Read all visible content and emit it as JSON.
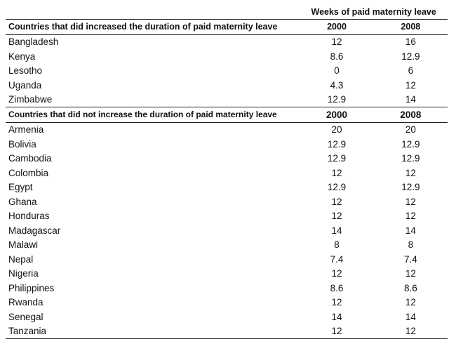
{
  "header": {
    "column_group_label": "Weeks of paid maternity leave"
  },
  "sections": [
    {
      "title": "Countries that did increased the duration of paid maternity leave",
      "col_2000": "2000",
      "col_2008": "2008",
      "rows": [
        {
          "country": "Bangladesh",
          "y2000": "12",
          "y2008": "16"
        },
        {
          "country": "Kenya",
          "y2000": "8.6",
          "y2008": "12.9"
        },
        {
          "country": "Lesotho",
          "y2000": "0",
          "y2008": "6"
        },
        {
          "country": "Uganda",
          "y2000": "4.3",
          "y2008": "12"
        },
        {
          "country": "Zimbabwe",
          "y2000": "12.9",
          "y2008": "14"
        }
      ]
    },
    {
      "title": "Countries that did not increase the duration of paid maternity leave",
      "col_2000": "2000",
      "col_2008": "2008",
      "rows": [
        {
          "country": "Armenia",
          "y2000": "20",
          "y2008": "20"
        },
        {
          "country": "Bolivia",
          "y2000": "12.9",
          "y2008": "12.9"
        },
        {
          "country": "Cambodia",
          "y2000": "12.9",
          "y2008": "12.9"
        },
        {
          "country": "Colombia",
          "y2000": "12",
          "y2008": "12"
        },
        {
          "country": "Egypt",
          "y2000": "12.9",
          "y2008": "12.9"
        },
        {
          "country": "Ghana",
          "y2000": "12",
          "y2008": "12"
        },
        {
          "country": "Honduras",
          "y2000": "12",
          "y2008": "12"
        },
        {
          "country": "Madagascar",
          "y2000": "14",
          "y2008": "14"
        },
        {
          "country": "Malawi",
          "y2000": "8",
          "y2008": "8"
        },
        {
          "country": "Nepal",
          "y2000": "7.4",
          "y2008": "7.4"
        },
        {
          "country": "Nigeria",
          "y2000": "12",
          "y2008": "12"
        },
        {
          "country": "Philippines",
          "y2000": "8.6",
          "y2008": "8.6"
        },
        {
          "country": "Rwanda",
          "y2000": "12",
          "y2008": "12"
        },
        {
          "country": "Senegal",
          "y2000": "14",
          "y2008": "14"
        },
        {
          "country": "Tanzania",
          "y2000": "12",
          "y2008": "12"
        }
      ]
    }
  ]
}
